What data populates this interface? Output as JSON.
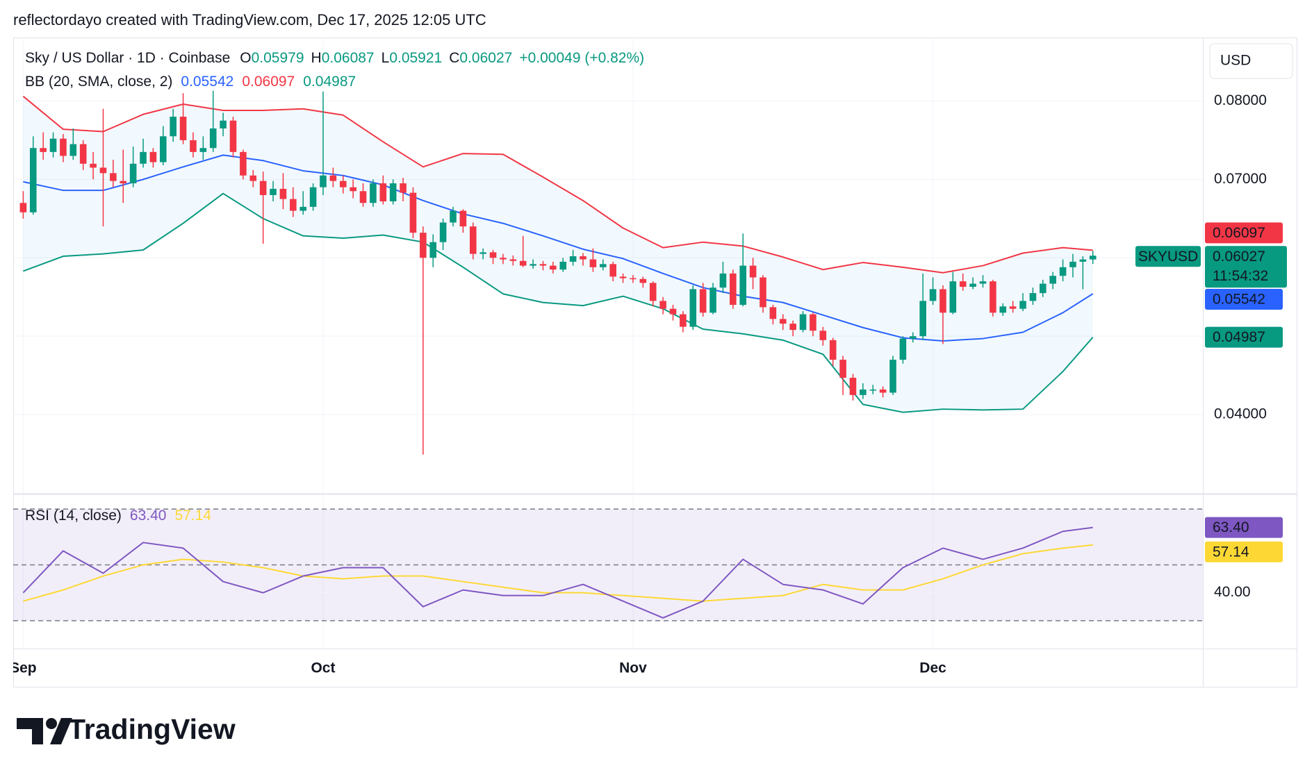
{
  "header": {
    "attribution": "reflectordayo created with TradingView.com, Dec 17, 2025 12:05 UTC"
  },
  "chart_data": {
    "type": "candlestick",
    "title": "Sky / US Dollar · 1D · Coinbase",
    "symbol": "SKYUSD",
    "currency": "USD",
    "countdown": "11:54:32",
    "ohlc_letters": [
      "O",
      "H",
      "L",
      "C"
    ],
    "change_label": "+0.00049 (+0.82%)",
    "up_color": "#089981",
    "down_color": "#f23645",
    "x": [
      "2025-09-01",
      "2025-09-02",
      "2025-09-03",
      "2025-09-04",
      "2025-09-05",
      "2025-09-06",
      "2025-09-07",
      "2025-09-08",
      "2025-09-09",
      "2025-09-10",
      "2025-09-11",
      "2025-09-12",
      "2025-09-13",
      "2025-09-14",
      "2025-09-15",
      "2025-09-16",
      "2025-09-17",
      "2025-09-18",
      "2025-09-19",
      "2025-09-20",
      "2025-09-21",
      "2025-09-22",
      "2025-09-23",
      "2025-09-24",
      "2025-09-25",
      "2025-09-26",
      "2025-09-27",
      "2025-09-28",
      "2025-09-29",
      "2025-09-30",
      "2025-10-01",
      "2025-10-02",
      "2025-10-03",
      "2025-10-04",
      "2025-10-05",
      "2025-10-06",
      "2025-10-07",
      "2025-10-08",
      "2025-10-09",
      "2025-10-10",
      "2025-10-11",
      "2025-10-12",
      "2025-10-13",
      "2025-10-14",
      "2025-10-15",
      "2025-10-16",
      "2025-10-17",
      "2025-10-18",
      "2025-10-19",
      "2025-10-20",
      "2025-10-21",
      "2025-10-22",
      "2025-10-23",
      "2025-10-24",
      "2025-10-25",
      "2025-10-26",
      "2025-10-27",
      "2025-10-28",
      "2025-10-29",
      "2025-10-30",
      "2025-10-31",
      "2025-11-01",
      "2025-11-02",
      "2025-11-03",
      "2025-11-04",
      "2025-11-05",
      "2025-11-06",
      "2025-11-07",
      "2025-11-08",
      "2025-11-09",
      "2025-11-10",
      "2025-11-11",
      "2025-11-12",
      "2025-11-13",
      "2025-11-14",
      "2025-11-15",
      "2025-11-16",
      "2025-11-17",
      "2025-11-18",
      "2025-11-19",
      "2025-11-20",
      "2025-11-21",
      "2025-11-22",
      "2025-11-23",
      "2025-11-24",
      "2025-11-25",
      "2025-11-26",
      "2025-11-27",
      "2025-11-28",
      "2025-11-29",
      "2025-11-30",
      "2025-12-01",
      "2025-12-02",
      "2025-12-03",
      "2025-12-04",
      "2025-12-05",
      "2025-12-06",
      "2025-12-07",
      "2025-12-08",
      "2025-12-09",
      "2025-12-10",
      "2025-12-11",
      "2025-12-12",
      "2025-12-13",
      "2025-12-14",
      "2025-12-15",
      "2025-12-16",
      "2025-12-17"
    ],
    "open": [
      0.067,
      0.0658,
      0.074,
      0.0735,
      0.0752,
      0.073,
      0.0745,
      0.072,
      0.0715,
      0.0708,
      0.0698,
      0.0695,
      0.072,
      0.0735,
      0.0722,
      0.0755,
      0.078,
      0.075,
      0.0735,
      0.074,
      0.0765,
      0.0775,
      0.0735,
      0.0705,
      0.0698,
      0.068,
      0.0688,
      0.0675,
      0.066,
      0.0665,
      0.069,
      0.0705,
      0.0698,
      0.069,
      0.0685,
      0.067,
      0.0695,
      0.0672,
      0.0695,
      0.0683,
      0.0632,
      0.06,
      0.062,
      0.0645,
      0.066,
      0.064,
      0.0605,
      0.0607,
      0.06,
      0.0598,
      0.0596,
      0.059,
      0.0592,
      0.059,
      0.0585,
      0.0595,
      0.0602,
      0.0598,
      0.0588,
      0.0592,
      0.0576,
      0.0574,
      0.0573,
      0.0568,
      0.0545,
      0.0535,
      0.0528,
      0.0512,
      0.056,
      0.053,
      0.0562,
      0.058,
      0.054,
      0.059,
      0.0575,
      0.0537,
      0.0522,
      0.0516,
      0.0508,
      0.0528,
      0.0507,
      0.0495,
      0.047,
      0.0447,
      0.0425,
      0.0432,
      0.0432,
      0.0428,
      0.047,
      0.0497,
      0.05,
      0.0545,
      0.056,
      0.053,
      0.057,
      0.0563,
      0.0567,
      0.057,
      0.053,
      0.0538,
      0.0535,
      0.0545,
      0.0555,
      0.0567,
      0.0577,
      0.0588,
      0.0595,
      0.05979
    ],
    "high": [
      0.0685,
      0.0755,
      0.076,
      0.076,
      0.0758,
      0.0765,
      0.075,
      0.0735,
      0.079,
      0.0725,
      0.0738,
      0.0742,
      0.0752,
      0.074,
      0.0768,
      0.079,
      0.081,
      0.076,
      0.0755,
      0.0813,
      0.0785,
      0.078,
      0.0738,
      0.0712,
      0.071,
      0.0698,
      0.0708,
      0.069,
      0.0685,
      0.0695,
      0.0812,
      0.0715,
      0.0705,
      0.07,
      0.0695,
      0.07,
      0.0705,
      0.07,
      0.0702,
      0.069,
      0.064,
      0.063,
      0.065,
      0.0665,
      0.0662,
      0.0645,
      0.0612,
      0.061,
      0.0605,
      0.0603,
      0.0628,
      0.0598,
      0.0596,
      0.0595,
      0.06,
      0.061,
      0.0606,
      0.0612,
      0.0598,
      0.0595,
      0.058,
      0.0578,
      0.0576,
      0.057,
      0.055,
      0.054,
      0.0532,
      0.0565,
      0.0568,
      0.0568,
      0.0595,
      0.0585,
      0.0631,
      0.06,
      0.0578,
      0.054,
      0.0528,
      0.052,
      0.0532,
      0.053,
      0.0512,
      0.0498,
      0.0475,
      0.0452,
      0.044,
      0.0438,
      0.0436,
      0.0475,
      0.05,
      0.0505,
      0.058,
      0.0575,
      0.0565,
      0.0582,
      0.058,
      0.0575,
      0.0578,
      0.0572,
      0.0542,
      0.0545,
      0.0555,
      0.0562,
      0.0572,
      0.0582,
      0.0598,
      0.0605,
      0.0602,
      0.06087
    ],
    "low": [
      0.065,
      0.0655,
      0.0725,
      0.0728,
      0.0722,
      0.0725,
      0.0712,
      0.07,
      0.064,
      0.069,
      0.067,
      0.069,
      0.0715,
      0.0715,
      0.0718,
      0.0748,
      0.0745,
      0.0728,
      0.0725,
      0.0735,
      0.0755,
      0.0728,
      0.07,
      0.069,
      0.0618,
      0.0672,
      0.0662,
      0.0652,
      0.0655,
      0.066,
      0.068,
      0.069,
      0.0682,
      0.0676,
      0.0665,
      0.0665,
      0.0668,
      0.0668,
      0.0672,
      0.0625,
      0.0349,
      0.0588,
      0.061,
      0.064,
      0.0632,
      0.0598,
      0.0598,
      0.0592,
      0.0592,
      0.059,
      0.0588,
      0.0586,
      0.0584,
      0.058,
      0.0582,
      0.059,
      0.059,
      0.0582,
      0.0584,
      0.057,
      0.0568,
      0.0568,
      0.0562,
      0.0538,
      0.0528,
      0.052,
      0.0505,
      0.0508,
      0.0525,
      0.0528,
      0.0555,
      0.0535,
      0.0538,
      0.056,
      0.053,
      0.0515,
      0.0508,
      0.05,
      0.0505,
      0.05,
      0.0488,
      0.0462,
      0.0425,
      0.0418,
      0.042,
      0.0426,
      0.0422,
      0.0425,
      0.0465,
      0.0492,
      0.0495,
      0.054,
      0.049,
      0.0528,
      0.0558,
      0.056,
      0.0562,
      0.0525,
      0.0526,
      0.053,
      0.0532,
      0.054,
      0.055,
      0.056,
      0.057,
      0.0575,
      0.056,
      0.05921
    ],
    "close": [
      0.0658,
      0.074,
      0.0735,
      0.0752,
      0.073,
      0.0745,
      0.072,
      0.0715,
      0.0708,
      0.0698,
      0.0695,
      0.072,
      0.0735,
      0.0722,
      0.0755,
      0.078,
      0.075,
      0.0735,
      0.074,
      0.0765,
      0.0775,
      0.0735,
      0.0705,
      0.0698,
      0.068,
      0.0688,
      0.0675,
      0.066,
      0.0665,
      0.069,
      0.0705,
      0.0698,
      0.069,
      0.0685,
      0.067,
      0.0695,
      0.0672,
      0.0695,
      0.0683,
      0.0632,
      0.06,
      0.062,
      0.0645,
      0.066,
      0.064,
      0.0605,
      0.0607,
      0.06,
      0.0598,
      0.0596,
      0.059,
      0.0592,
      0.059,
      0.0585,
      0.0595,
      0.0602,
      0.0598,
      0.0588,
      0.0592,
      0.0576,
      0.0574,
      0.0573,
      0.0568,
      0.0545,
      0.0535,
      0.0528,
      0.0512,
      0.056,
      0.053,
      0.0562,
      0.058,
      0.054,
      0.059,
      0.0575,
      0.0537,
      0.0522,
      0.0516,
      0.0508,
      0.0528,
      0.0507,
      0.0495,
      0.047,
      0.0447,
      0.0425,
      0.0432,
      0.0432,
      0.0428,
      0.047,
      0.0497,
      0.05,
      0.0545,
      0.056,
      0.053,
      0.057,
      0.0563,
      0.0567,
      0.057,
      0.053,
      0.0538,
      0.0535,
      0.0545,
      0.0555,
      0.0567,
      0.0577,
      0.0588,
      0.0595,
      0.05979,
      0.06027
    ],
    "xlim": [
      "2025-08-31",
      "2025-12-28"
    ],
    "xticks": [
      {
        "value": "2025-09-01",
        "label": "Sep"
      },
      {
        "value": "2025-10-01",
        "label": "Oct"
      },
      {
        "value": "2025-11-01",
        "label": "Nov"
      },
      {
        "value": "2025-12-01",
        "label": "Dec"
      }
    ],
    "ylim": [
      0.03,
      0.0881
    ],
    "yticks": [
      {
        "value": 0.04,
        "label": "0.04000"
      },
      {
        "value": 0.05,
        "label": null
      },
      {
        "value": 0.06,
        "label": null
      },
      {
        "value": 0.07,
        "label": "0.07000"
      },
      {
        "value": 0.08,
        "label": "0.08000"
      }
    ],
    "grid": true,
    "bb": {
      "label": "BB (20, SMA, close, 2)",
      "fill": "#2196f3",
      "x": [
        "2025-09-01",
        "2025-09-05",
        "2025-09-09",
        "2025-09-13",
        "2025-09-17",
        "2025-09-21",
        "2025-09-25",
        "2025-09-29",
        "2025-10-03",
        "2025-10-07",
        "2025-10-11",
        "2025-10-15",
        "2025-10-19",
        "2025-10-23",
        "2025-10-27",
        "2025-10-31",
        "2025-11-04",
        "2025-11-08",
        "2025-11-12",
        "2025-11-16",
        "2025-11-20",
        "2025-11-24",
        "2025-11-28",
        "2025-12-02",
        "2025-12-06",
        "2025-12-10",
        "2025-12-14",
        "2025-12-17"
      ],
      "series": [
        {
          "color": "#2962ff",
          "values": [
            0.0697,
            0.0686,
            0.0686,
            0.07,
            0.0716,
            0.0731,
            0.0724,
            0.0711,
            0.0705,
            0.0693,
            0.0673,
            0.0656,
            0.0644,
            0.0628,
            0.0611,
            0.0599,
            0.058,
            0.0562,
            0.0551,
            0.0543,
            0.0527,
            0.0511,
            0.0498,
            0.0494,
            0.0497,
            0.0505,
            0.053,
            0.05542
          ]
        },
        {
          "color": "#f23645",
          "values": [
            0.0806,
            0.0764,
            0.0761,
            0.0783,
            0.0796,
            0.0788,
            0.0788,
            0.079,
            0.0782,
            0.0748,
            0.0716,
            0.0733,
            0.0732,
            0.0703,
            0.0673,
            0.0638,
            0.0613,
            0.062,
            0.0615,
            0.0601,
            0.0585,
            0.0594,
            0.0588,
            0.0581,
            0.059,
            0.0606,
            0.0613,
            0.06097
          ]
        },
        {
          "color": "#089981",
          "values": [
            0.0583,
            0.0602,
            0.0605,
            0.061,
            0.0644,
            0.0682,
            0.065,
            0.0628,
            0.0625,
            0.0629,
            0.062,
            0.0588,
            0.0554,
            0.0543,
            0.0539,
            0.0551,
            0.0535,
            0.0509,
            0.0503,
            0.0495,
            0.0477,
            0.0413,
            0.0403,
            0.0407,
            0.0406,
            0.0407,
            0.0455,
            0.04987
          ]
        }
      ]
    },
    "rsi": {
      "label": "RSI (14, close)",
      "ylim": [
        20,
        75
      ],
      "yticks": [
        {
          "value": 40,
          "label": "40.00"
        }
      ],
      "bands": [
        30,
        50,
        70
      ],
      "band_color": "#7e57c2",
      "x": [
        "2025-09-01",
        "2025-09-05",
        "2025-09-09",
        "2025-09-13",
        "2025-09-17",
        "2025-09-21",
        "2025-09-25",
        "2025-09-29",
        "2025-10-03",
        "2025-10-07",
        "2025-10-11",
        "2025-10-15",
        "2025-10-19",
        "2025-10-23",
        "2025-10-27",
        "2025-10-31",
        "2025-11-04",
        "2025-11-08",
        "2025-11-12",
        "2025-11-16",
        "2025-11-20",
        "2025-11-24",
        "2025-11-28",
        "2025-12-02",
        "2025-12-06",
        "2025-12-10",
        "2025-12-14",
        "2025-12-17"
      ],
      "series": [
        {
          "color": "#7e57c2",
          "values": [
            40,
            55,
            47,
            58,
            56,
            44,
            40,
            46,
            49,
            49,
            35,
            41,
            39,
            39,
            43,
            37,
            31,
            37,
            52,
            43,
            41,
            36,
            49,
            56,
            52,
            56,
            62,
            63.4
          ],
          "last_label": "63.40"
        },
        {
          "color": "#fdd835",
          "values": [
            37,
            41,
            46,
            50,
            52,
            51,
            49,
            46,
            45,
            46,
            46,
            44,
            42,
            40,
            40,
            39,
            38,
            37,
            38,
            39,
            43,
            41,
            41,
            45,
            50,
            54,
            56,
            57.14
          ],
          "last_label": "57.14"
        }
      ]
    }
  },
  "footer": {
    "brand": "TradingView"
  }
}
